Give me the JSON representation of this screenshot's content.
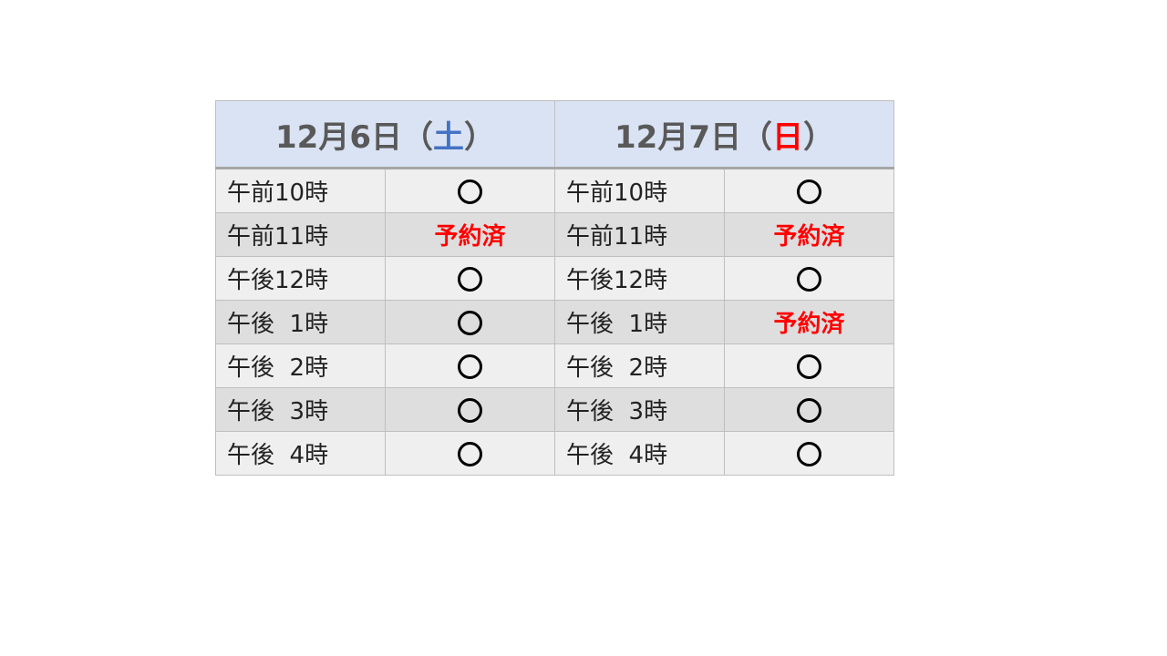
{
  "days": [
    {
      "date": "12月6日",
      "open": "（",
      "weekday": "土",
      "close": "）",
      "weekday_color": "#4472c4"
    },
    {
      "date": "12月7日",
      "open": "（",
      "weekday": "日",
      "close": "）",
      "weekday_color": "#ff0000"
    }
  ],
  "times": [
    "午前10時",
    "午前11時",
    "午後12時",
    "午後  1時",
    "午後  2時",
    "午後  3時",
    "午後  4時"
  ],
  "status_labels": {
    "available": "○",
    "booked": "予約済"
  },
  "slots": [
    [
      "available",
      "available"
    ],
    [
      "booked",
      "booked"
    ],
    [
      "available",
      "available"
    ],
    [
      "available",
      "booked"
    ],
    [
      "available",
      "available"
    ],
    [
      "available",
      "available"
    ],
    [
      "available",
      "available"
    ]
  ],
  "colors": {
    "header_bg": "#dae3f3",
    "booked": "#ff0000"
  }
}
